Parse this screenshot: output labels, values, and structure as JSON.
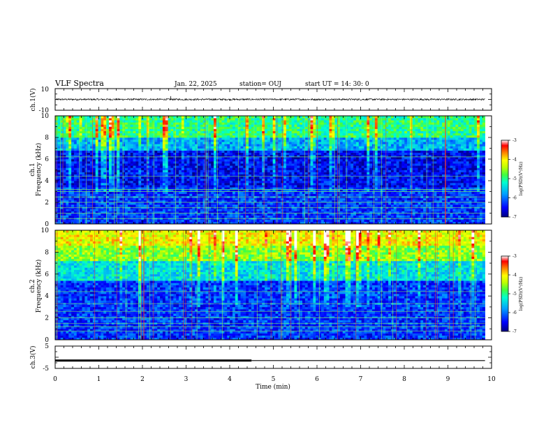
{
  "header": {
    "title": "VLF Spectra",
    "date": "Jan. 22, 2025",
    "station": "station= OUJ",
    "start_ut": "start  UT =   14: 30: 0"
  },
  "colors": {
    "colormap": [
      "#000080",
      "#0000ff",
      "#00a0ff",
      "#00ffd0",
      "#40ff40",
      "#c0ff00",
      "#ffff00",
      "#ff8000",
      "#ff0000",
      "#ffffff"
    ],
    "waveform": "#000000",
    "line_bar": "#000000"
  },
  "chart_data": [
    {
      "id": "ch1-waveform",
      "type": "line",
      "ylabel": "ch.1(V)",
      "ylim": [
        -10,
        10
      ],
      "yticks": [
        "10",
        "-10"
      ],
      "baseline": 0,
      "amplitude": 0.8,
      "spikes": [
        {
          "x": 2.65,
          "y": 3.0
        }
      ]
    },
    {
      "id": "ch1-spectrogram",
      "type": "heatmap",
      "ylabel": "ch.1\nFrequency (kHz)",
      "ylabel_lines": [
        "ch.1",
        "Frequency (kHz)"
      ],
      "xlim": [
        0,
        10
      ],
      "ylim": [
        0,
        10
      ],
      "yticks": [
        "0",
        "2",
        "4",
        "6",
        "8",
        "10"
      ],
      "data_extent_min": 9.85,
      "bands": [
        {
          "f0": 0,
          "f1": 3.5,
          "level": 0.18
        },
        {
          "f0": 3.5,
          "f1": 6.8,
          "level": 0.12
        },
        {
          "f0": 6.8,
          "f1": 8.0,
          "level": 0.32
        },
        {
          "f0": 8.0,
          "f1": 10,
          "level": 0.5
        }
      ],
      "lines_khz": [
        0.5,
        1.0,
        1.5,
        2.0,
        2.5,
        3.0,
        3.2,
        4.4,
        6.2
      ],
      "colorbar": {
        "min": -7,
        "max": -3,
        "ticks": [
          "-3",
          "-4",
          "-5",
          "-6",
          "-7"
        ],
        "label": "log(PSD)(V²/Hz)"
      }
    },
    {
      "id": "ch2-spectrogram",
      "type": "heatmap",
      "ylabel": "ch.2\nFrequency (kHz)",
      "ylabel_lines": [
        "ch.2",
        "Frequency (kHz)"
      ],
      "xlim": [
        0,
        10
      ],
      "ylim": [
        0,
        10
      ],
      "yticks": [
        "0",
        "2",
        "4",
        "6",
        "8",
        "10"
      ],
      "data_extent_min": 9.85,
      "bands": [
        {
          "f0": 0,
          "f1": 5.5,
          "level": 0.18
        },
        {
          "f0": 5.5,
          "f1": 7.2,
          "level": 0.4
        },
        {
          "f0": 7.2,
          "f1": 8.6,
          "level": 0.6
        },
        {
          "f0": 8.6,
          "f1": 10,
          "level": 0.72
        }
      ],
      "lines_khz": [
        0.8,
        1.2,
        1.5,
        2.0,
        2.6,
        3.3,
        4.4
      ],
      "colorbar": {
        "min": -7,
        "max": -3,
        "ticks": [
          "-3",
          "-4",
          "-5",
          "-6",
          "-7"
        ],
        "label": "log(PSD)(V²/Hz)"
      }
    },
    {
      "id": "ch3-waveform",
      "type": "line",
      "ylabel": "ch.3(V)",
      "ylim": [
        -5,
        5
      ],
      "yticks": [
        "5",
        "-5"
      ],
      "xlabel": "Time (min)",
      "xticks": [
        "0",
        "1",
        "2",
        "3",
        "4",
        "5",
        "6",
        "7",
        "8",
        "9",
        "10"
      ],
      "segments": [
        {
          "x0": 0,
          "x1": 4.5,
          "y": -1.5,
          "weight": "thick"
        },
        {
          "x0": 4.5,
          "x1": 9.85,
          "y": -1.5,
          "weight": "thin"
        }
      ]
    }
  ]
}
